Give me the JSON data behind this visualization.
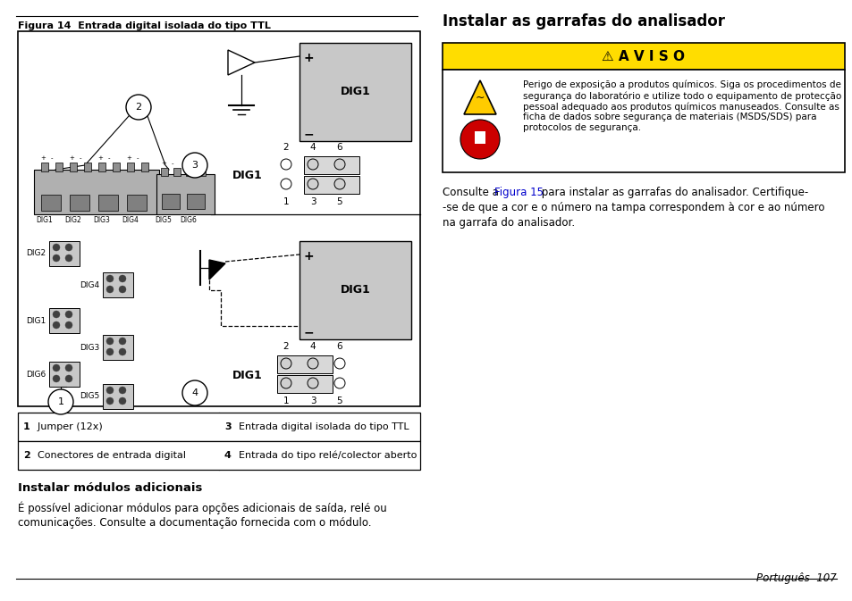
{
  "page_bg": "#ffffff",
  "fig_title": "Figura 14  Entrada digital isolada do tipo TTL",
  "right_title": "Instalar as garrafas do analisador",
  "aviso_title": "⚠ A V I S O",
  "aviso_bg": "#ffdd00",
  "aviso_text": "Perigo de exposição a produtos químicos. Siga os procedimentos de\nsegurança do laboratório e utilize todo o equipamento de protecção\npessoal adequado aos produtos químicos manuseados. Consulte as\nficha de dados sobre segurança de materiais (MSDS/SDS) para\nprotocolos de segurança.",
  "consulte_pre": "Consulte a ",
  "consulte_link": "Figura 15",
  "consulte_post": " para instalar as garrafas do analisador. Certifique-",
  "consulte_line2": "-se de que a cor e o número na tampa correspondem à cor e ao número",
  "consulte_line3": "na garrafa do analisador.",
  "section_title": "Instalar módulos adicionais",
  "section_text": "É possível adicionar módulos para opções adicionais de saída, relé ou\ncomunicações. Consulte a documentação fornecida com o módulo.",
  "table_rows": [
    [
      "1  Jumper (12x)",
      "3  Entrada digital isolada do tipo TTL"
    ],
    [
      "2  Conectores de entrada digital",
      "4  Entrada do tipo relé/colector aberto"
    ]
  ],
  "footer_text": "Português  107",
  "link_color": "#0000cc"
}
